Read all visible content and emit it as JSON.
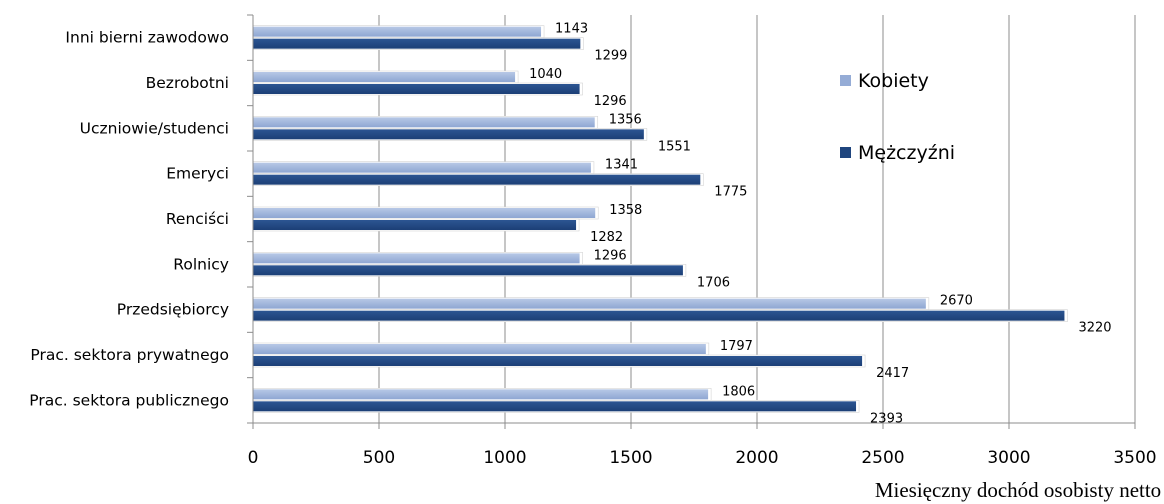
{
  "chart_data": {
    "type": "bar",
    "orientation": "horizontal",
    "categories": [
      "Inni bierni zawodowo",
      "Bezrobotni",
      "Uczniowie/studenci",
      "Emeryci",
      "Renciści",
      "Rolnicy",
      "Przedsiębiorcy",
      "Prac. sektora prywatnego",
      "Prac. sektora publicznego"
    ],
    "series": [
      {
        "name": "Kobiety",
        "color": "#95acd6",
        "values": [
          1143,
          1040,
          1356,
          1341,
          1358,
          1296,
          2670,
          1797,
          1806
        ]
      },
      {
        "name": "Mężczyźni",
        "color": "#1f457e",
        "values": [
          1299,
          1296,
          1551,
          1775,
          1282,
          1706,
          3220,
          2417,
          2393
        ]
      }
    ],
    "xlabel": "Miesięczny dochód osobisty netto",
    "ylabel": "",
    "xlim": [
      0,
      3500
    ],
    "xticks": [
      0,
      500,
      1000,
      1500,
      2000,
      2500,
      3000,
      3500
    ],
    "grid": "vertical",
    "legend": "right"
  }
}
